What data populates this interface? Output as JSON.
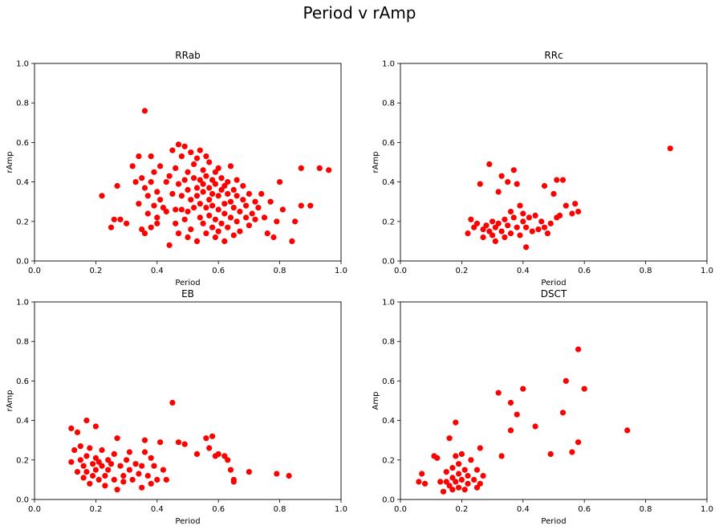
{
  "figure": {
    "title": "Period v rAmp"
  },
  "chart_data": [
    {
      "type": "scatter",
      "title": "RRab",
      "xlabel": "Period",
      "ylabel": "rAmp",
      "xlim": [
        0,
        1
      ],
      "ylim": [
        0,
        1
      ],
      "xticks": [
        "0.0",
        "0.2",
        "0.4",
        "0.6",
        "0.8",
        "1.0"
      ],
      "yticks": [
        "0.0",
        "0.2",
        "0.4",
        "0.6",
        "0.8",
        "1.0"
      ],
      "color": "#ff0000",
      "points": [
        [
          0.36,
          0.76
        ],
        [
          0.22,
          0.33
        ],
        [
          0.25,
          0.17
        ],
        [
          0.26,
          0.21
        ],
        [
          0.27,
          0.38
        ],
        [
          0.28,
          0.21
        ],
        [
          0.3,
          0.19
        ],
        [
          0.32,
          0.48
        ],
        [
          0.33,
          0.4
        ],
        [
          0.34,
          0.53
        ],
        [
          0.34,
          0.29
        ],
        [
          0.35,
          0.16
        ],
        [
          0.35,
          0.42
        ],
        [
          0.36,
          0.37
        ],
        [
          0.36,
          0.14
        ],
        [
          0.37,
          0.33
        ],
        [
          0.37,
          0.24
        ],
        [
          0.38,
          0.53
        ],
        [
          0.38,
          0.17
        ],
        [
          0.38,
          0.4
        ],
        [
          0.39,
          0.28
        ],
        [
          0.39,
          0.45
        ],
        [
          0.4,
          0.35
        ],
        [
          0.4,
          0.22
        ],
        [
          0.4,
          0.19
        ],
        [
          0.41,
          0.31
        ],
        [
          0.41,
          0.48
        ],
        [
          0.42,
          0.27
        ],
        [
          0.43,
          0.25
        ],
        [
          0.43,
          0.4
        ],
        [
          0.44,
          0.08
        ],
        [
          0.44,
          0.43
        ],
        [
          0.45,
          0.56
        ],
        [
          0.45,
          0.34
        ],
        [
          0.46,
          0.19
        ],
        [
          0.46,
          0.26
        ],
        [
          0.46,
          0.47
        ],
        [
          0.47,
          0.59
        ],
        [
          0.47,
          0.14
        ],
        [
          0.47,
          0.39
        ],
        [
          0.48,
          0.26
        ],
        [
          0.48,
          0.33
        ],
        [
          0.48,
          0.53
        ],
        [
          0.49,
          0.41
        ],
        [
          0.49,
          0.21
        ],
        [
          0.49,
          0.58
        ],
        [
          0.5,
          0.12
        ],
        [
          0.5,
          0.36
        ],
        [
          0.5,
          0.45
        ],
        [
          0.5,
          0.25
        ],
        [
          0.51,
          0.31
        ],
        [
          0.51,
          0.55
        ],
        [
          0.51,
          0.16
        ],
        [
          0.52,
          0.42
        ],
        [
          0.52,
          0.27
        ],
        [
          0.52,
          0.49
        ],
        [
          0.53,
          0.37
        ],
        [
          0.53,
          0.1
        ],
        [
          0.53,
          0.33
        ],
        [
          0.53,
          0.52
        ],
        [
          0.54,
          0.22
        ],
        [
          0.54,
          0.41
        ],
        [
          0.54,
          0.29
        ],
        [
          0.54,
          0.56
        ],
        [
          0.55,
          0.35
        ],
        [
          0.55,
          0.19
        ],
        [
          0.55,
          0.46
        ],
        [
          0.55,
          0.39
        ],
        [
          0.56,
          0.27
        ],
        [
          0.56,
          0.53
        ],
        [
          0.56,
          0.14
        ],
        [
          0.56,
          0.43
        ],
        [
          0.57,
          0.31
        ],
        [
          0.57,
          0.37
        ],
        [
          0.57,
          0.23
        ],
        [
          0.57,
          0.5
        ],
        [
          0.58,
          0.41
        ],
        [
          0.58,
          0.17
        ],
        [
          0.58,
          0.34
        ],
        [
          0.58,
          0.28
        ],
        [
          0.59,
          0.45
        ],
        [
          0.59,
          0.12
        ],
        [
          0.59,
          0.39
        ],
        [
          0.59,
          0.21
        ],
        [
          0.6,
          0.33
        ],
        [
          0.6,
          0.47
        ],
        [
          0.6,
          0.26
        ],
        [
          0.6,
          0.15
        ],
        [
          0.61,
          0.36
        ],
        [
          0.61,
          0.42
        ],
        [
          0.61,
          0.19
        ],
        [
          0.62,
          0.29
        ],
        [
          0.62,
          0.38
        ],
        [
          0.62,
          0.1
        ],
        [
          0.62,
          0.24
        ],
        [
          0.63,
          0.34
        ],
        [
          0.63,
          0.4
        ],
        [
          0.63,
          0.17
        ],
        [
          0.64,
          0.3
        ],
        [
          0.64,
          0.22
        ],
        [
          0.64,
          0.48
        ],
        [
          0.65,
          0.36
        ],
        [
          0.65,
          0.13
        ],
        [
          0.65,
          0.27
        ],
        [
          0.66,
          0.33
        ],
        [
          0.66,
          0.2
        ],
        [
          0.66,
          0.41
        ],
        [
          0.67,
          0.25
        ],
        [
          0.67,
          0.15
        ],
        [
          0.68,
          0.31
        ],
        [
          0.68,
          0.38
        ],
        [
          0.69,
          0.22
        ],
        [
          0.69,
          0.28
        ],
        [
          0.7,
          0.34
        ],
        [
          0.7,
          0.18
        ],
        [
          0.71,
          0.24
        ],
        [
          0.72,
          0.3
        ],
        [
          0.72,
          0.21
        ],
        [
          0.73,
          0.27
        ],
        [
          0.74,
          0.34
        ],
        [
          0.75,
          0.22
        ],
        [
          0.76,
          0.14
        ],
        [
          0.77,
          0.3
        ],
        [
          0.78,
          0.12
        ],
        [
          0.79,
          0.2
        ],
        [
          0.8,
          0.4
        ],
        [
          0.81,
          0.26
        ],
        [
          0.84,
          0.1
        ],
        [
          0.85,
          0.2
        ],
        [
          0.87,
          0.47
        ],
        [
          0.87,
          0.28
        ],
        [
          0.9,
          0.28
        ],
        [
          0.93,
          0.47
        ],
        [
          0.96,
          0.46
        ]
      ]
    },
    {
      "type": "scatter",
      "title": "RRc",
      "xlabel": "Period",
      "ylabel": "rAmp",
      "xlim": [
        0,
        1
      ],
      "ylim": [
        0,
        1
      ],
      "xticks": [
        "0.0",
        "0.2",
        "0.4",
        "0.6",
        "0.8",
        "1.0"
      ],
      "yticks": [
        "0.0",
        "0.2",
        "0.4",
        "0.6",
        "0.8",
        "1.0"
      ],
      "color": "#ff0000",
      "points": [
        [
          0.22,
          0.14
        ],
        [
          0.23,
          0.21
        ],
        [
          0.24,
          0.17
        ],
        [
          0.25,
          0.19
        ],
        [
          0.26,
          0.39
        ],
        [
          0.27,
          0.16
        ],
        [
          0.27,
          0.12
        ],
        [
          0.28,
          0.18
        ],
        [
          0.29,
          0.49
        ],
        [
          0.29,
          0.15
        ],
        [
          0.3,
          0.13
        ],
        [
          0.3,
          0.2
        ],
        [
          0.31,
          0.17
        ],
        [
          0.31,
          0.1
        ],
        [
          0.32,
          0.35
        ],
        [
          0.32,
          0.19
        ],
        [
          0.33,
          0.43
        ],
        [
          0.33,
          0.15
        ],
        [
          0.34,
          0.21
        ],
        [
          0.34,
          0.12
        ],
        [
          0.35,
          0.18
        ],
        [
          0.35,
          0.4
        ],
        [
          0.36,
          0.25
        ],
        [
          0.36,
          0.14
        ],
        [
          0.37,
          0.46
        ],
        [
          0.37,
          0.22
        ],
        [
          0.38,
          0.17
        ],
        [
          0.38,
          0.39
        ],
        [
          0.39,
          0.28
        ],
        [
          0.39,
          0.13
        ],
        [
          0.4,
          0.2
        ],
        [
          0.4,
          0.24
        ],
        [
          0.41,
          0.07
        ],
        [
          0.41,
          0.17
        ],
        [
          0.42,
          0.22
        ],
        [
          0.43,
          0.15
        ],
        [
          0.44,
          0.23
        ],
        [
          0.45,
          0.16
        ],
        [
          0.46,
          0.2
        ],
        [
          0.47,
          0.38
        ],
        [
          0.47,
          0.17
        ],
        [
          0.48,
          0.14
        ],
        [
          0.49,
          0.19
        ],
        [
          0.5,
          0.34
        ],
        [
          0.51,
          0.22
        ],
        [
          0.51,
          0.41
        ],
        [
          0.52,
          0.23
        ],
        [
          0.53,
          0.41
        ],
        [
          0.54,
          0.28
        ],
        [
          0.56,
          0.24
        ],
        [
          0.57,
          0.29
        ],
        [
          0.58,
          0.25
        ],
        [
          0.88,
          0.57
        ]
      ]
    },
    {
      "type": "scatter",
      "title": "EB",
      "xlabel": "Period",
      "ylabel": "rAmp",
      "xlim": [
        0,
        1
      ],
      "ylim": [
        0,
        1
      ],
      "xticks": [
        "0.0",
        "0.2",
        "0.4",
        "0.6",
        "0.8",
        "1.0"
      ],
      "yticks": [
        "0.0",
        "0.2",
        "0.4",
        "0.6",
        "0.8",
        "1.0"
      ],
      "color": "#ff0000",
      "points": [
        [
          0.12,
          0.36
        ],
        [
          0.12,
          0.19
        ],
        [
          0.13,
          0.25
        ],
        [
          0.14,
          0.14
        ],
        [
          0.14,
          0.34
        ],
        [
          0.15,
          0.2
        ],
        [
          0.15,
          0.27
        ],
        [
          0.16,
          0.11
        ],
        [
          0.16,
          0.17
        ],
        [
          0.17,
          0.4
        ],
        [
          0.17,
          0.22
        ],
        [
          0.17,
          0.14
        ],
        [
          0.18,
          0.08
        ],
        [
          0.18,
          0.26
        ],
        [
          0.19,
          0.18
        ],
        [
          0.19,
          0.12
        ],
        [
          0.2,
          0.37
        ],
        [
          0.2,
          0.21
        ],
        [
          0.2,
          0.15
        ],
        [
          0.21,
          0.1
        ],
        [
          0.21,
          0.19
        ],
        [
          0.22,
          0.17
        ],
        [
          0.22,
          0.25
        ],
        [
          0.23,
          0.12
        ],
        [
          0.23,
          0.07
        ],
        [
          0.24,
          0.2
        ],
        [
          0.24,
          0.15
        ],
        [
          0.25,
          0.18
        ],
        [
          0.26,
          0.1
        ],
        [
          0.26,
          0.23
        ],
        [
          0.27,
          0.31
        ],
        [
          0.27,
          0.05
        ],
        [
          0.28,
          0.17
        ],
        [
          0.29,
          0.12
        ],
        [
          0.29,
          0.09
        ],
        [
          0.3,
          0.2
        ],
        [
          0.31,
          0.15
        ],
        [
          0.31,
          0.24
        ],
        [
          0.32,
          0.1
        ],
        [
          0.33,
          0.18
        ],
        [
          0.34,
          0.13
        ],
        [
          0.35,
          0.06
        ],
        [
          0.35,
          0.17
        ],
        [
          0.36,
          0.3
        ],
        [
          0.36,
          0.24
        ],
        [
          0.37,
          0.12
        ],
        [
          0.38,
          0.21
        ],
        [
          0.38,
          0.08
        ],
        [
          0.39,
          0.17
        ],
        [
          0.4,
          0.1
        ],
        [
          0.41,
          0.29
        ],
        [
          0.42,
          0.15
        ],
        [
          0.43,
          0.1
        ],
        [
          0.45,
          0.49
        ],
        [
          0.47,
          0.29
        ],
        [
          0.49,
          0.28
        ],
        [
          0.53,
          0.23
        ],
        [
          0.56,
          0.31
        ],
        [
          0.57,
          0.26
        ],
        [
          0.58,
          0.32
        ],
        [
          0.59,
          0.22
        ],
        [
          0.6,
          0.23
        ],
        [
          0.62,
          0.22
        ],
        [
          0.63,
          0.2
        ],
        [
          0.64,
          0.15
        ],
        [
          0.65,
          0.09
        ],
        [
          0.65,
          0.1
        ],
        [
          0.7,
          0.14
        ],
        [
          0.79,
          0.13
        ],
        [
          0.83,
          0.12
        ]
      ]
    },
    {
      "type": "scatter",
      "title": "DSCT",
      "xlabel": "Period",
      "ylabel": "Amp",
      "xlim": [
        0,
        1
      ],
      "ylim": [
        0,
        1
      ],
      "xticks": [
        "0.0",
        "0.2",
        "0.4",
        "0.6",
        "0.8",
        "1.0"
      ],
      "yticks": [
        "0.0",
        "0.2",
        "0.4",
        "0.6",
        "0.8",
        "1.0"
      ],
      "color": "#ff0000",
      "points": [
        [
          0.06,
          0.09
        ],
        [
          0.07,
          0.13
        ],
        [
          0.08,
          0.08
        ],
        [
          0.11,
          0.22
        ],
        [
          0.12,
          0.21
        ],
        [
          0.13,
          0.09
        ],
        [
          0.14,
          0.04
        ],
        [
          0.15,
          0.09
        ],
        [
          0.15,
          0.14
        ],
        [
          0.16,
          0.07
        ],
        [
          0.16,
          0.31
        ],
        [
          0.17,
          0.16
        ],
        [
          0.17,
          0.11
        ],
        [
          0.17,
          0.05
        ],
        [
          0.18,
          0.22
        ],
        [
          0.18,
          0.09
        ],
        [
          0.18,
          0.39
        ],
        [
          0.19,
          0.13
        ],
        [
          0.19,
          0.06
        ],
        [
          0.19,
          0.18
        ],
        [
          0.2,
          0.1
        ],
        [
          0.2,
          0.23
        ],
        [
          0.21,
          0.15
        ],
        [
          0.21,
          0.05
        ],
        [
          0.22,
          0.12
        ],
        [
          0.22,
          0.08
        ],
        [
          0.23,
          0.2
        ],
        [
          0.24,
          0.1
        ],
        [
          0.25,
          0.06
        ],
        [
          0.25,
          0.15
        ],
        [
          0.26,
          0.26
        ],
        [
          0.26,
          0.08
        ],
        [
          0.27,
          0.12
        ],
        [
          0.32,
          0.54
        ],
        [
          0.33,
          0.22
        ],
        [
          0.36,
          0.49
        ],
        [
          0.36,
          0.35
        ],
        [
          0.38,
          0.43
        ],
        [
          0.4,
          0.56
        ],
        [
          0.44,
          0.37
        ],
        [
          0.49,
          0.23
        ],
        [
          0.53,
          0.44
        ],
        [
          0.54,
          0.6
        ],
        [
          0.56,
          0.24
        ],
        [
          0.58,
          0.29
        ],
        [
          0.58,
          0.76
        ],
        [
          0.6,
          0.56
        ],
        [
          0.74,
          0.35
        ]
      ]
    }
  ]
}
